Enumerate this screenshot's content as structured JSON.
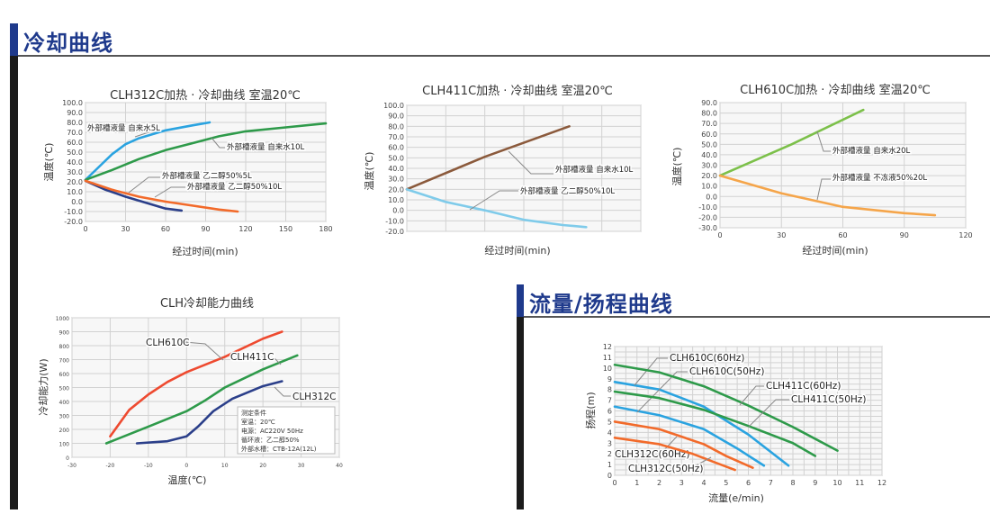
{
  "sections": [
    {
      "title": "冷却曲线"
    },
    {
      "title": "流量/扬程曲线"
    }
  ],
  "colors": {
    "section_accent": "#1f3a8c",
    "section_bar": "#1b1b1b"
  },
  "chart_data": [
    {
      "type": "line",
      "title": "CLH312C加热 · 冷却曲线 室温20℃",
      "xlabel": "经过时间(min)",
      "ylabel": "温度(℃)",
      "xlim": [
        0,
        180
      ],
      "ylim": [
        -20,
        100
      ],
      "grid": true,
      "xticks": [
        "0",
        "30",
        "60",
        "90",
        "120",
        "150",
        "180"
      ],
      "yticks": [
        "-20.0",
        "-10.0",
        "0.0",
        "10.0",
        "20.0",
        "30.0",
        "40.0",
        "50.0",
        "60.0",
        "70.0",
        "80.0",
        "90.0",
        "100.0"
      ],
      "series": [
        {
          "name": "外部槽液量 自来水5L",
          "color": "#2aa3e0",
          "x": [
            0,
            10,
            20,
            30,
            40,
            60,
            80,
            93
          ],
          "y": [
            22,
            35,
            48,
            58,
            64,
            72,
            77,
            80
          ]
        },
        {
          "name": "外部槽液量 自来水10L",
          "color": "#2e9a4a",
          "x": [
            0,
            20,
            40,
            60,
            80,
            100,
            120,
            150,
            180
          ],
          "y": [
            22,
            32,
            43,
            52,
            59,
            66,
            71,
            75,
            79
          ]
        },
        {
          "name": "外部槽液量 乙二醇50%5L",
          "color": "#2b3f8a",
          "x": [
            0,
            15,
            30,
            45,
            60,
            72
          ],
          "y": [
            21,
            12,
            5,
            -1,
            -7,
            -9
          ]
        },
        {
          "name": "外部槽液量 乙二醇50%10L",
          "color": "#f26a2a",
          "x": [
            0,
            20,
            40,
            60,
            80,
            100,
            114
          ],
          "y": [
            21,
            12,
            5,
            0,
            -4,
            -8,
            -10
          ]
        }
      ]
    },
    {
      "type": "line",
      "title": "CLH411C加热 · 冷却曲线 室温20℃",
      "xlabel": "经过时间(min)",
      "ylabel": "温度(℃)",
      "xlim": [
        0,
        180
      ],
      "ylim": [
        -20,
        100
      ],
      "grid": true,
      "xticks": [],
      "yticks": [
        "-20.0",
        "-10.0",
        "0.0",
        "10.0",
        "20.0",
        "30.0",
        "40.0",
        "50.0",
        "60.0",
        "70.0",
        "80.0",
        "90.0",
        "100.0"
      ],
      "series": [
        {
          "name": "外部槽液量 自来水10L",
          "color": "#8b5a3c",
          "x": [
            0,
            60,
            125
          ],
          "y": [
            20,
            51,
            80
          ]
        },
        {
          "name": "外部槽液量 乙二醇50%10L",
          "color": "#7fcbea",
          "x": [
            0,
            30,
            60,
            90,
            120,
            138
          ],
          "y": [
            20,
            8,
            0,
            -9,
            -14,
            -16
          ]
        }
      ]
    },
    {
      "type": "line",
      "title": "CLH610C加热 · 冷却曲线 室温20℃",
      "xlabel": "经过时间(min)",
      "ylabel": "温度(℃)",
      "xlim": [
        0,
        120
      ],
      "ylim": [
        -30,
        90
      ],
      "grid": true,
      "xticks": [
        "0",
        "30",
        "60",
        "90",
        "120"
      ],
      "yticks": [
        "-30.0",
        "-20.0",
        "-10.0",
        "0.0",
        "10.0",
        "20.0",
        "30.0",
        "40.0",
        "50.0",
        "60.0",
        "70.0",
        "80.0",
        "90.0"
      ],
      "series": [
        {
          "name": "外部槽液量 自来水20L",
          "color": "#7cc04a",
          "x": [
            0,
            35,
            70
          ],
          "y": [
            20,
            50,
            83
          ]
        },
        {
          "name": "外部槽液量 不冻液50%20L",
          "color": "#f5a54a",
          "x": [
            0,
            30,
            60,
            90,
            105
          ],
          "y": [
            20,
            3,
            -10,
            -16,
            -18
          ]
        }
      ]
    },
    {
      "type": "line",
      "title": "CLH冷却能力曲线",
      "xlabel": "温度(℃)",
      "ylabel": "冷却能力(W)",
      "xlim": [
        -30,
        40
      ],
      "ylim": [
        0,
        1000
      ],
      "grid": true,
      "xticks": [
        "-30",
        "-20",
        "-10",
        "0",
        "10",
        "20",
        "30",
        "40"
      ],
      "yticks": [
        "0",
        "100",
        "200",
        "300",
        "400",
        "500",
        "600",
        "700",
        "800",
        "900",
        "1000"
      ],
      "series": [
        {
          "name": "CLH610C",
          "color": "#ee4a30",
          "x": [
            -20,
            -15,
            -10,
            -5,
            0,
            10,
            20,
            25
          ],
          "y": [
            150,
            340,
            450,
            540,
            610,
            720,
            850,
            900
          ]
        },
        {
          "name": "CLH411C",
          "color": "#2e9a4a",
          "x": [
            -21,
            -10,
            0,
            5,
            10,
            20,
            29
          ],
          "y": [
            100,
            220,
            330,
            410,
            500,
            630,
            730
          ]
        },
        {
          "name": "CLH312C",
          "color": "#2b3f8a",
          "x": [
            -13,
            -5,
            0,
            3,
            7,
            12,
            20,
            25
          ],
          "y": [
            100,
            115,
            150,
            220,
            330,
            420,
            510,
            545
          ]
        }
      ],
      "notes": [
        "测定条件",
        "室温：20℃",
        "电源：AC220V 50Hz",
        "循环液：乙二醇50%",
        "外部水槽：CTB-12A(12L)"
      ]
    },
    {
      "type": "line",
      "title": "",
      "xlabel": "流量(e/min)",
      "ylabel": "扬程(m)",
      "xlim": [
        0,
        12
      ],
      "ylim": [
        0,
        12
      ],
      "grid": true,
      "xticks": [
        "0",
        "1",
        "2",
        "3",
        "4",
        "5",
        "6",
        "7",
        "8",
        "9",
        "10",
        "11",
        "12"
      ],
      "yticks": [
        "0",
        "1",
        "2",
        "3",
        "4",
        "5",
        "6",
        "7",
        "8",
        "9",
        "10",
        "11",
        "12"
      ],
      "series": [
        {
          "name": "CLH610C(60Hz)",
          "color": "#2aa3e0",
          "x": [
            0,
            2,
            4,
            6,
            7.8
          ],
          "y": [
            8.7,
            8,
            6.4,
            3.8,
            0.9
          ]
        },
        {
          "name": "CLH610C(50Hz)",
          "color": "#2aa3e0",
          "x": [
            0,
            2,
            4,
            5.5,
            6.7
          ],
          "y": [
            6.4,
            5.6,
            4.3,
            2.5,
            0.9
          ]
        },
        {
          "name": "CLH411C(60Hz)",
          "color": "#2e9a4a",
          "x": [
            0,
            2,
            4,
            6,
            8,
            10
          ],
          "y": [
            10.3,
            9.6,
            8.3,
            6.5,
            4.5,
            2.3
          ]
        },
        {
          "name": "CLH411C(50Hz)",
          "color": "#2e9a4a",
          "x": [
            0,
            2,
            4,
            6,
            8,
            9
          ],
          "y": [
            7.8,
            7.2,
            6.1,
            4.6,
            3,
            1.8
          ]
        },
        {
          "name": "CLH312C(60Hz)",
          "color": "#f26a2a",
          "x": [
            0,
            2,
            4,
            5,
            6.2
          ],
          "y": [
            5,
            4.3,
            2.9,
            1.8,
            0.7
          ]
        },
        {
          "name": "CLH312C(50Hz)",
          "color": "#f26a2a",
          "x": [
            0,
            2,
            3.5,
            4.5,
            5.4
          ],
          "y": [
            3.5,
            2.9,
            2,
            1.2,
            0.5
          ]
        }
      ]
    }
  ]
}
